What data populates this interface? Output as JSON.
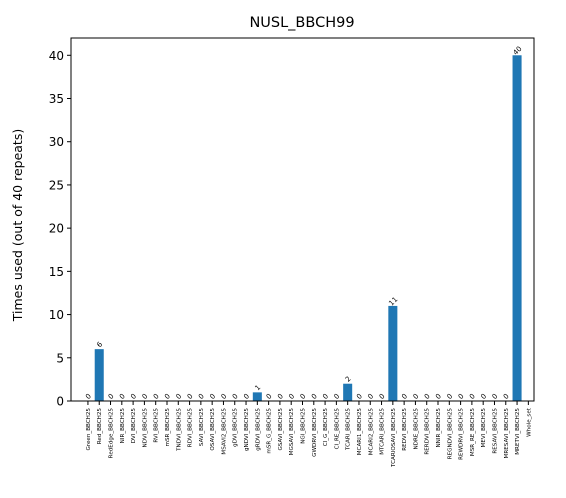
{
  "chart_data": {
    "type": "bar",
    "title": "NUSL_BBCH99",
    "xlabel": "",
    "ylabel": "Times used (out of 40 repeats)",
    "ylim": [
      0,
      42
    ],
    "yticks": [
      0,
      5,
      10,
      15,
      20,
      25,
      30,
      35,
      40
    ],
    "grid": false,
    "bar_color": "#1f77b4",
    "categories": [
      "Green_BBCH25",
      "Red_BBCH25",
      "RedEdge_BBCH25",
      "NIR_BBCH25",
      "DVI_BBCH25",
      "NDVI_BBCH25",
      "RVI_BBCH25",
      "mSR_BBCH25",
      "TNDVI_BBCH25",
      "RDVI_BBCH25",
      "SAVI_BBCH25",
      "OSAVI_BBCH25",
      "MSAVI2_BBCH25",
      "gDVI_BBCH25",
      "gNDVI_BBCH25",
      "gRDVI_BBCH25",
      "mSR_G_BBCH25",
      "GSAVI_BBCH25",
      "MGSAVI_BBCH25",
      "NGI_BBCH25",
      "GWDRVI_BBCH25",
      "CI_G_BBCH25",
      "CI_RE_BBCH25",
      "TCARI_BBCH25",
      "MCARI1_BBCH25",
      "MCARI2_BBCH25",
      "MTCARI_BBCH25",
      "TCARIOSAVI_BBCH25",
      "REDVI_BBCH25",
      "NDRE_BBCH25",
      "RERDVI_BBCH25",
      "NNIR_BBCH25",
      "REGNDVI_BBCH25",
      "REWDRVI_BBCH25",
      "MSR_RE_BBCH25",
      "MEVI_BBCH25",
      "RESAVI_BBCH25",
      "MRESAVI_BBCH25",
      "MRETVI_BBCH25",
      "Whole_set"
    ],
    "values": [
      0,
      6,
      0,
      0,
      0,
      0,
      0,
      0,
      0,
      0,
      0,
      0,
      0,
      0,
      0,
      1,
      0,
      0,
      0,
      0,
      0,
      0,
      0,
      2,
      0,
      0,
      0,
      11,
      0,
      0,
      0,
      0,
      0,
      0,
      0,
      0,
      0,
      0,
      40,
      null
    ]
  }
}
